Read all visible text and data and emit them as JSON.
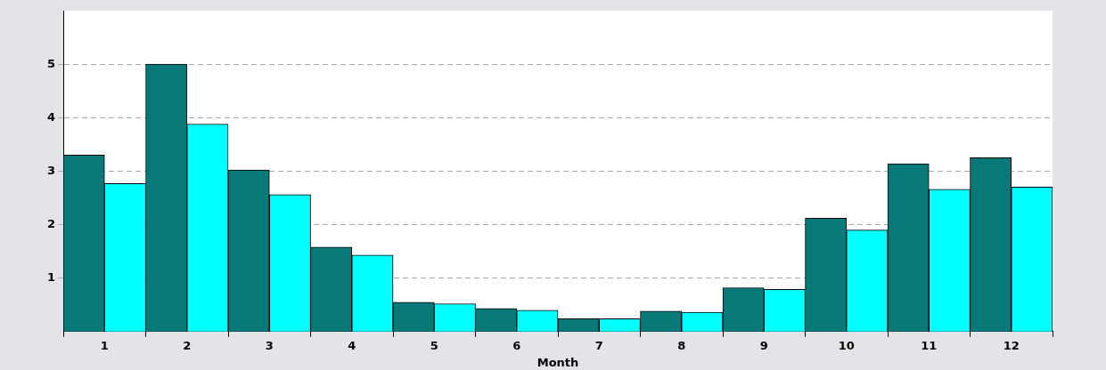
{
  "chart_data": {
    "type": "bar",
    "xlabel": "Month",
    "categories": [
      "1",
      "2",
      "3",
      "4",
      "5",
      "6",
      "7",
      "8",
      "9",
      "10",
      "11",
      "12"
    ],
    "series": [
      {
        "color": "#087878",
        "values": [
          3.3,
          5.0,
          3.02,
          1.58,
          0.55,
          0.43,
          0.24,
          0.38,
          0.82,
          2.12,
          3.14,
          3.25
        ]
      },
      {
        "color": "#00ffff",
        "values": [
          2.77,
          3.88,
          2.56,
          1.43,
          0.52,
          0.4,
          0.24,
          0.36,
          0.79,
          1.9,
          2.66,
          2.7
        ]
      }
    ],
    "ylim": [
      0,
      6
    ],
    "yticks": [
      1,
      2,
      3,
      4,
      5
    ],
    "grid": "y"
  }
}
